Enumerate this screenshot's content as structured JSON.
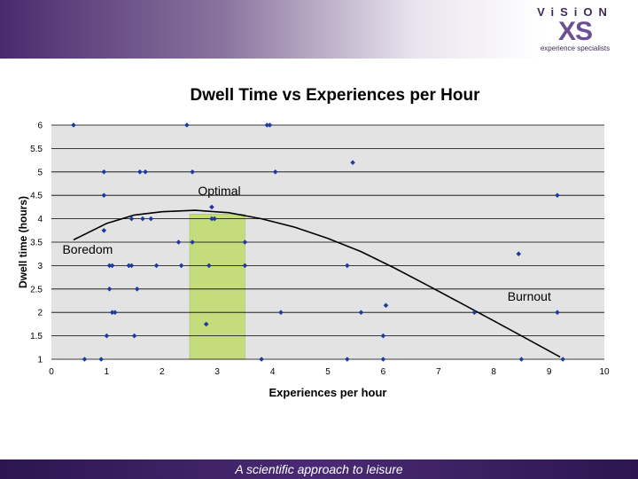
{
  "brand": {
    "name": "ViSiON",
    "mark": "XS",
    "tagline": "experience specialists"
  },
  "footer": {
    "text": "A scientific approach to leisure"
  },
  "colors": {
    "point": "#1f3a9e",
    "plot_bg": "#e3e3e3",
    "band": "#c4dc7c",
    "curve": "#000000"
  },
  "chart_data": {
    "type": "scatter",
    "title": "Dwell Time vs Experiences per Hour",
    "xlabel": "Experiences per hour",
    "ylabel": "Dwell time (hours)",
    "xlim": [
      0,
      10
    ],
    "ylim": [
      1,
      6
    ],
    "x_ticks": [
      "0",
      "1",
      "2",
      "3",
      "4",
      "5",
      "6",
      "7",
      "8",
      "9",
      "10"
    ],
    "y_ticks": [
      "1",
      "1.5",
      "2",
      "2.5",
      "3",
      "3.5",
      "4",
      "4.5",
      "5",
      "5.5",
      "6"
    ],
    "grid": "horizontal",
    "highlight_band": {
      "x_from": 2.5,
      "x_to": 3.5,
      "label": "Optimal"
    },
    "annotations": [
      {
        "text": "Boredom",
        "x": 0.2,
        "y": 3.25
      },
      {
        "text": "Optimal",
        "x": 2.65,
        "y": 4.5
      },
      {
        "text": "Burnout",
        "x": 8.25,
        "y": 2.25
      }
    ],
    "trend": [
      {
        "x": 0.4,
        "y": 3.55
      },
      {
        "x": 1.0,
        "y": 3.9
      },
      {
        "x": 1.5,
        "y": 4.08
      },
      {
        "x": 2.0,
        "y": 4.15
      },
      {
        "x": 2.6,
        "y": 4.18
      },
      {
        "x": 3.2,
        "y": 4.13
      },
      {
        "x": 3.8,
        "y": 4.0
      },
      {
        "x": 4.4,
        "y": 3.82
      },
      {
        "x": 5.0,
        "y": 3.58
      },
      {
        "x": 5.6,
        "y": 3.3
      },
      {
        "x": 6.2,
        "y": 2.95
      },
      {
        "x": 6.8,
        "y": 2.58
      },
      {
        "x": 7.4,
        "y": 2.2
      },
      {
        "x": 8.0,
        "y": 1.82
      },
      {
        "x": 8.5,
        "y": 1.5
      },
      {
        "x": 9.2,
        "y": 1.05
      }
    ],
    "points": [
      {
        "x": 0.4,
        "y": 6
      },
      {
        "x": 2.45,
        "y": 6
      },
      {
        "x": 3.9,
        "y": 6
      },
      {
        "x": 3.95,
        "y": 6
      },
      {
        "x": 5.45,
        "y": 5.2
      },
      {
        "x": 0.95,
        "y": 5
      },
      {
        "x": 1.6,
        "y": 5
      },
      {
        "x": 1.7,
        "y": 5
      },
      {
        "x": 2.55,
        "y": 5
      },
      {
        "x": 4.05,
        "y": 5
      },
      {
        "x": 0.95,
        "y": 4.5
      },
      {
        "x": 9.15,
        "y": 4.5
      },
      {
        "x": 2.9,
        "y": 4.25
      },
      {
        "x": 1.45,
        "y": 4
      },
      {
        "x": 1.65,
        "y": 4
      },
      {
        "x": 1.8,
        "y": 4
      },
      {
        "x": 2.9,
        "y": 4
      },
      {
        "x": 2.95,
        "y": 4
      },
      {
        "x": 0.95,
        "y": 3.75
      },
      {
        "x": 2.3,
        "y": 3.5
      },
      {
        "x": 2.55,
        "y": 3.5
      },
      {
        "x": 3.5,
        "y": 3.5
      },
      {
        "x": 8.45,
        "y": 3.25
      },
      {
        "x": 1.05,
        "y": 3
      },
      {
        "x": 1.1,
        "y": 3
      },
      {
        "x": 1.4,
        "y": 3
      },
      {
        "x": 1.45,
        "y": 3
      },
      {
        "x": 1.9,
        "y": 3
      },
      {
        "x": 2.35,
        "y": 3
      },
      {
        "x": 2.85,
        "y": 3
      },
      {
        "x": 3.5,
        "y": 3
      },
      {
        "x": 5.35,
        "y": 3
      },
      {
        "x": 1.05,
        "y": 2.5
      },
      {
        "x": 1.55,
        "y": 2.5
      },
      {
        "x": 6.05,
        "y": 2.15
      },
      {
        "x": 1.1,
        "y": 2
      },
      {
        "x": 1.15,
        "y": 2
      },
      {
        "x": 4.15,
        "y": 2
      },
      {
        "x": 5.6,
        "y": 2
      },
      {
        "x": 7.65,
        "y": 2
      },
      {
        "x": 9.15,
        "y": 2
      },
      {
        "x": 2.8,
        "y": 1.75
      },
      {
        "x": 1.0,
        "y": 1.5
      },
      {
        "x": 1.5,
        "y": 1.5
      },
      {
        "x": 6.0,
        "y": 1.5
      },
      {
        "x": 0.6,
        "y": 1
      },
      {
        "x": 0.9,
        "y": 1
      },
      {
        "x": 3.8,
        "y": 1
      },
      {
        "x": 5.35,
        "y": 1
      },
      {
        "x": 6.0,
        "y": 1
      },
      {
        "x": 8.5,
        "y": 1
      },
      {
        "x": 9.25,
        "y": 1
      }
    ]
  }
}
